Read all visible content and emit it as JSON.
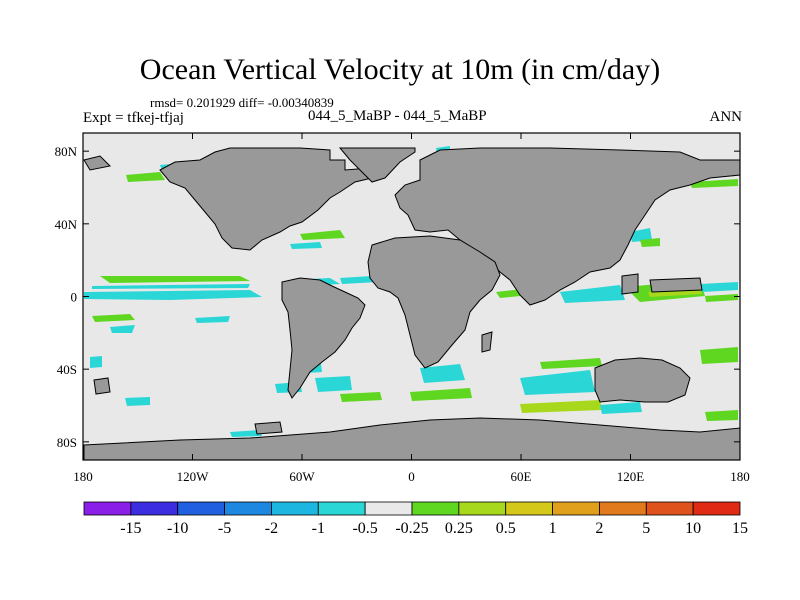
{
  "title": "Ocean Vertical Velocity at 10m (in cm/day)",
  "stats_line": "rmsd= 0.201929 diff= -0.00340839",
  "expt_line": "Expt = tfkej-tfjaj",
  "cases_line": "044_5_MaBP - 044_5_MaBP",
  "season": "ANN",
  "map": {
    "projection": "cylindrical equidistant",
    "lon_range": [
      -180,
      180
    ],
    "lat_range": [
      -90,
      90
    ],
    "lat_ticks": [
      {
        "value": 80,
        "label": "80N"
      },
      {
        "value": 40,
        "label": "40N"
      },
      {
        "value": 0,
        "label": "0"
      },
      {
        "value": -40,
        "label": "40S"
      },
      {
        "value": -80,
        "label": "80S"
      }
    ],
    "lon_ticks": [
      {
        "value": -180,
        "label": "180"
      },
      {
        "value": -120,
        "label": "120W"
      },
      {
        "value": -60,
        "label": "60W"
      },
      {
        "value": 0,
        "label": "0"
      },
      {
        "value": 60,
        "label": "60E"
      },
      {
        "value": 120,
        "label": "120E"
      },
      {
        "value": 180,
        "label": "180"
      }
    ],
    "ocean_color": "#e8e8e8",
    "land_color": "#999999"
  },
  "colorbar": {
    "colors": [
      "#8a1fe8",
      "#3c2de0",
      "#1f5fe0",
      "#1e88e0",
      "#1cb6e0",
      "#2bd6d6",
      "#e9e9e9",
      "#5fd61f",
      "#a8d81c",
      "#d4c81a",
      "#e0a01c",
      "#e07a1c",
      "#e0521c",
      "#e02a14"
    ],
    "labels": [
      "-15",
      "-10",
      "-5",
      "-2",
      "-1",
      "-0.5",
      "-0.25",
      "0.25",
      "0.5",
      "1",
      "2",
      "5",
      "10",
      "15"
    ]
  }
}
